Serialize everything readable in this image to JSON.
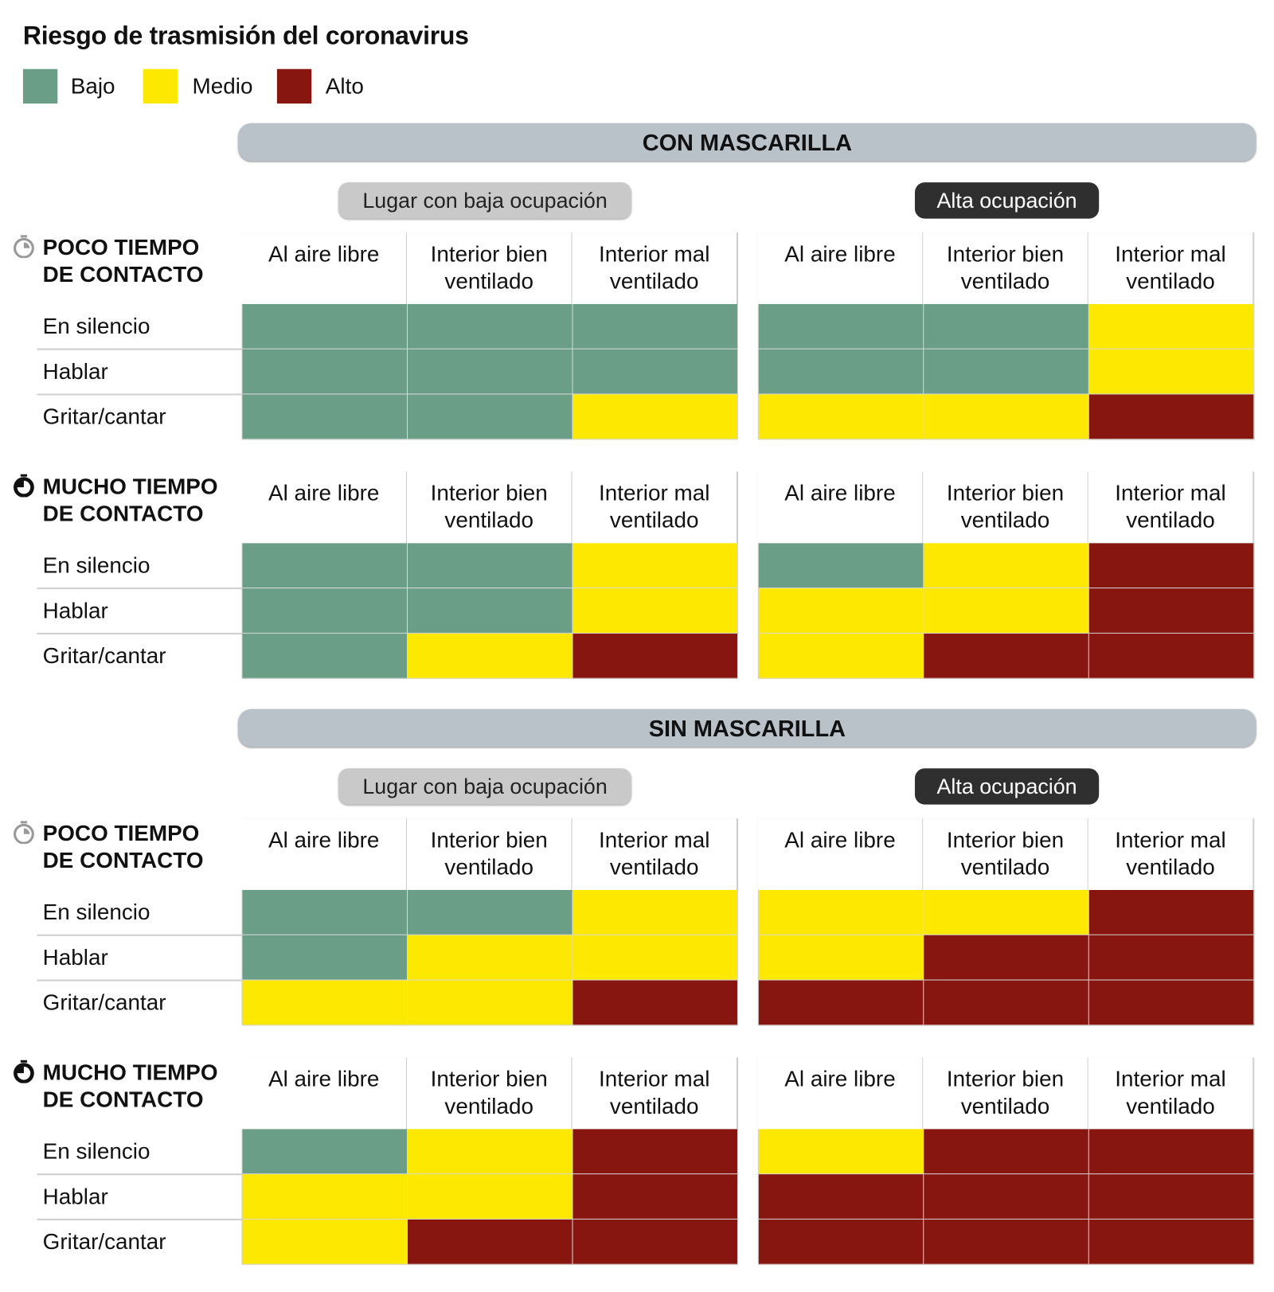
{
  "title": "Riesgo de trasmisión del coronavirus",
  "legend": [
    {
      "label": "Bajo",
      "color": "#6a9e86"
    },
    {
      "label": "Medio",
      "color": "#fce800"
    },
    {
      "label": "Alto",
      "color": "#871510"
    }
  ],
  "chart_data": {
    "type": "heatmap",
    "title": "Riesgo de trasmisión del coronavirus",
    "levels": [
      "Bajo",
      "Medio",
      "Alto"
    ],
    "columns": [
      "Al aire libre",
      "Interior bien ventilado",
      "Interior mal ventilado"
    ],
    "column_labels": [
      [
        "Al aire libre",
        ""
      ],
      [
        "Interior bien",
        "ventilado"
      ],
      [
        "Interior mal",
        "ventilado"
      ]
    ],
    "rows": [
      "En silencio",
      "Hablar",
      "Gritar/cantar"
    ],
    "sections": [
      {
        "title": "CON MASCARILLA",
        "occupancy": [
          "Lugar con baja ocupación",
          "Alta ocupación"
        ],
        "blocks": [
          {
            "label_lines": [
              "POCO TIEMPO",
              "DE CONTACTO"
            ],
            "icon": "stopwatch-light-icon",
            "baja": [
              [
                "Bajo",
                "Bajo",
                "Bajo"
              ],
              [
                "Bajo",
                "Bajo",
                "Bajo"
              ],
              [
                "Bajo",
                "Bajo",
                "Medio"
              ]
            ],
            "alta": [
              [
                "Bajo",
                "Bajo",
                "Medio"
              ],
              [
                "Bajo",
                "Bajo",
                "Medio"
              ],
              [
                "Medio",
                "Medio",
                "Alto"
              ]
            ]
          },
          {
            "label_lines": [
              "MUCHO TIEMPO",
              "DE CONTACTO"
            ],
            "icon": "stopwatch-full-icon",
            "baja": [
              [
                "Bajo",
                "Bajo",
                "Medio"
              ],
              [
                "Bajo",
                "Bajo",
                "Medio"
              ],
              [
                "Bajo",
                "Medio",
                "Alto"
              ]
            ],
            "alta": [
              [
                "Bajo",
                "Medio",
                "Alto"
              ],
              [
                "Medio",
                "Medio",
                "Alto"
              ],
              [
                "Medio",
                "Alto",
                "Alto"
              ]
            ]
          }
        ]
      },
      {
        "title": "SIN MASCARILLA",
        "occupancy": [
          "Lugar con baja ocupación",
          "Alta ocupación"
        ],
        "blocks": [
          {
            "label_lines": [
              "POCO TIEMPO",
              "DE CONTACTO"
            ],
            "icon": "stopwatch-light-icon",
            "baja": [
              [
                "Bajo",
                "Bajo",
                "Medio"
              ],
              [
                "Bajo",
                "Medio",
                "Medio"
              ],
              [
                "Medio",
                "Medio",
                "Alto"
              ]
            ],
            "alta": [
              [
                "Medio",
                "Medio",
                "Alto"
              ],
              [
                "Medio",
                "Alto",
                "Alto"
              ],
              [
                "Alto",
                "Alto",
                "Alto"
              ]
            ]
          },
          {
            "label_lines": [
              "MUCHO TIEMPO",
              "DE CONTACTO"
            ],
            "icon": "stopwatch-full-icon",
            "baja": [
              [
                "Bajo",
                "Medio",
                "Alto"
              ],
              [
                "Medio",
                "Medio",
                "Alto"
              ],
              [
                "Medio",
                "Alto",
                "Alto"
              ]
            ],
            "alta": [
              [
                "Medio",
                "Alto",
                "Alto"
              ],
              [
                "Alto",
                "Alto",
                "Alto"
              ],
              [
                "Alto",
                "Alto",
                "Alto"
              ]
            ]
          }
        ]
      }
    ]
  }
}
